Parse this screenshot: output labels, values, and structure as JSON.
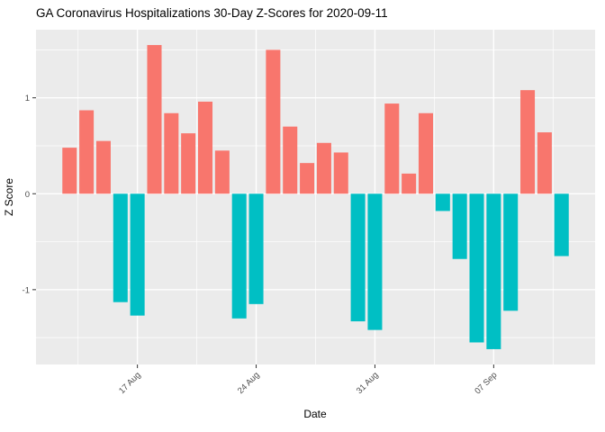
{
  "chart_data": {
    "type": "bar",
    "title": "GA Coronavirus Hospitalizations 30-Day Z-Scores for 2020-09-11",
    "xlabel": "Date",
    "ylabel": "Z Score",
    "categories": [
      "2020-08-13",
      "2020-08-14",
      "2020-08-15",
      "2020-08-16",
      "2020-08-17",
      "2020-08-18",
      "2020-08-19",
      "2020-08-20",
      "2020-08-21",
      "2020-08-22",
      "2020-08-23",
      "2020-08-24",
      "2020-08-25",
      "2020-08-26",
      "2020-08-27",
      "2020-08-28",
      "2020-08-29",
      "2020-08-30",
      "2020-08-31",
      "2020-09-01",
      "2020-09-02",
      "2020-09-03",
      "2020-09-04",
      "2020-09-05",
      "2020-09-06",
      "2020-09-07",
      "2020-09-08",
      "2020-09-09",
      "2020-09-10",
      "2020-09-11"
    ],
    "values": [
      0.48,
      0.87,
      0.55,
      -1.13,
      -1.27,
      1.55,
      0.84,
      0.63,
      0.96,
      0.45,
      -1.3,
      -1.15,
      1.5,
      0.7,
      0.32,
      0.53,
      0.43,
      -1.33,
      -1.42,
      0.94,
      0.21,
      0.84,
      -0.18,
      -0.68,
      -1.55,
      -1.62,
      -1.22,
      1.08,
      0.64,
      -0.65
    ],
    "x_tick_labels": [
      "17 Aug",
      "24 Aug",
      "31 Aug",
      "07 Sep"
    ],
    "x_tick_positions": [
      4,
      11,
      18,
      25
    ],
    "x_minor_positions": [
      0.5,
      7.5,
      14.5,
      21.5,
      28.5
    ],
    "y_ticks": [
      -1,
      0,
      1
    ],
    "y_tick_labels": [
      "-1",
      "0",
      "1"
    ],
    "y_minor_ticks": [
      -1.5,
      -0.5,
      0.5,
      1.5
    ],
    "ylim": [
      -1.78,
      1.71
    ],
    "grid": true,
    "legend": "none",
    "colors": {
      "positive": "#F8766D",
      "negative": "#00BFC4",
      "panel_bg": "#EBEBEB",
      "grid": "#FFFFFF",
      "tick_text": "#4D4D4D",
      "tick_mark": "#333333",
      "text": "#000000"
    }
  }
}
